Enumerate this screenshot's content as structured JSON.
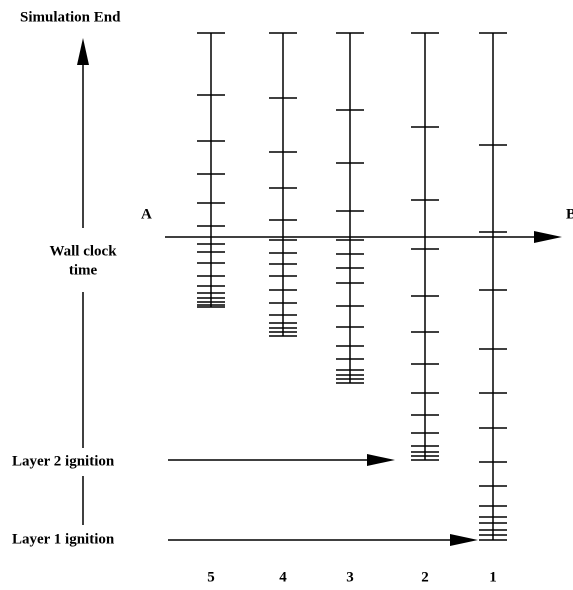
{
  "labels": {
    "top": "Simulation End",
    "axis": [
      "Wall clock",
      "time"
    ],
    "layer2": "Layer 2 ignition",
    "layer1": "Layer 1 ignition",
    "a": "A",
    "b": "B"
  },
  "columns": [
    "5",
    "4",
    "3",
    "2",
    "1"
  ]
}
